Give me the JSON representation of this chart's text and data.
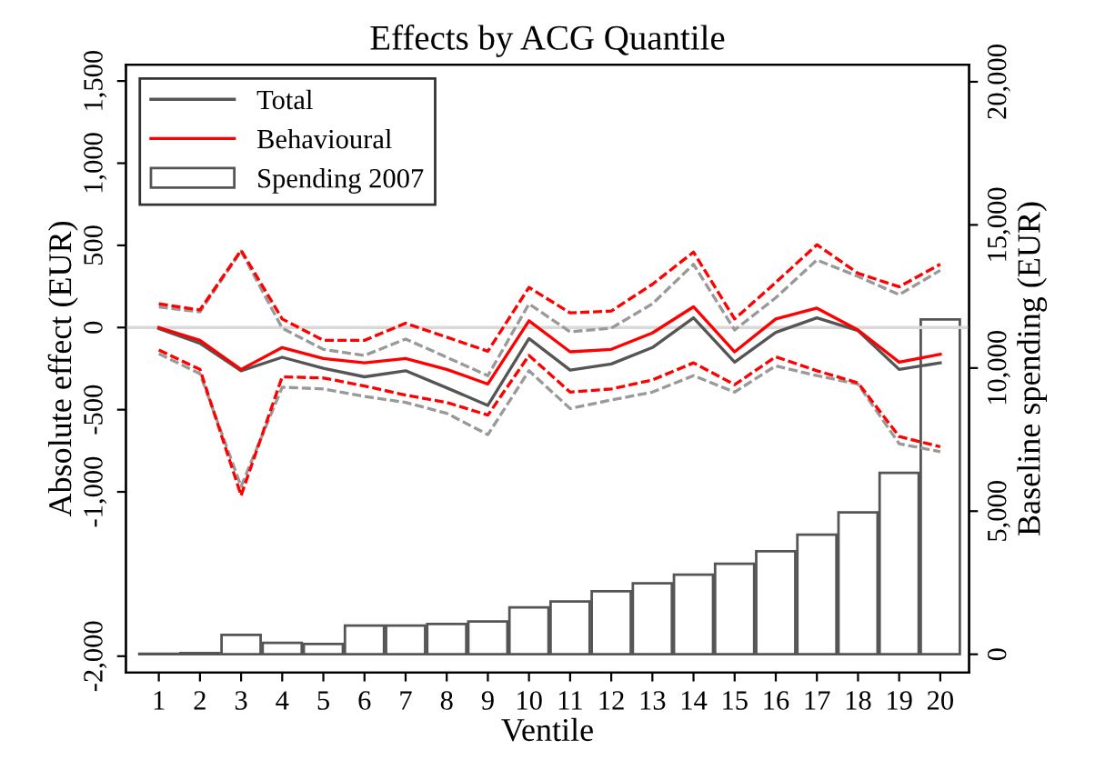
{
  "chart_data": {
    "type": "line",
    "title": "Effects by ACG Quantile",
    "xlabel": "Ventile",
    "ylabel": "Absolute effect (EUR)",
    "y2label": "Baseline spending (EUR)",
    "categories": [
      "1",
      "2",
      "3",
      "4",
      "5",
      "6",
      "7",
      "8",
      "9",
      "10",
      "11",
      "12",
      "13",
      "14",
      "15",
      "16",
      "17",
      "18",
      "19",
      "20"
    ],
    "series": [
      {
        "name": "Spending 2007",
        "type": "bar",
        "axis": "y2",
        "color": "#ffffff",
        "values": [
          20,
          40,
          680,
          400,
          360,
          1000,
          1000,
          1060,
          1145,
          1635,
          1845,
          2200,
          2480,
          2780,
          3160,
          3600,
          4180,
          4960,
          6340,
          11700
        ]
      },
      {
        "color": "#999999",
        "line_style": "dashed",
        "values": [
          125,
          95,
          465,
          -4,
          -133,
          -170,
          -70,
          -181,
          -293,
          144,
          -26,
          -4,
          144,
          385,
          -15,
          181,
          411,
          311,
          200,
          348
        ]
      },
      {
        "color": "#999999",
        "line_style": "dashed",
        "values": [
          -159,
          -281,
          -967,
          -363,
          -374,
          -419,
          -456,
          -522,
          -652,
          -263,
          -493,
          -441,
          -393,
          -293,
          -393,
          -233,
          -293,
          -344,
          -707,
          -756
        ]
      },
      {
        "color": "#ff0000",
        "line_style": "dashed",
        "values": [
          144,
          107,
          470,
          52,
          -78,
          -78,
          26,
          -59,
          -144,
          244,
          89,
          100,
          263,
          459,
          52,
          274,
          504,
          330,
          248,
          385
        ]
      },
      {
        "color": "#ff0000",
        "line_style": "dashed",
        "values": [
          -137,
          -255,
          -1022,
          -300,
          -307,
          -356,
          -411,
          -456,
          -533,
          -170,
          -393,
          -374,
          -319,
          -215,
          -348,
          -178,
          -263,
          -337,
          -663,
          -726
        ]
      },
      {
        "name": "Total",
        "color": "#555555",
        "line_style": "solid",
        "values": [
          -7,
          -96,
          -263,
          -181,
          -248,
          -300,
          -263,
          -367,
          -474,
          -67,
          -259,
          -222,
          -122,
          59,
          -211,
          -30,
          59,
          -19,
          -255,
          -215
        ]
      },
      {
        "name": "Behavioural",
        "color": "#ff0000",
        "line_style": "solid",
        "values": [
          0,
          -78,
          -255,
          -122,
          -189,
          -215,
          -189,
          -255,
          -344,
          41,
          -148,
          -133,
          -33,
          126,
          -148,
          52,
          118,
          -15,
          -211,
          -163
        ]
      }
    ],
    "ylim": [
      -2100,
      1600
    ],
    "yticks": [
      {
        "value": -2000,
        "label": "-2,000"
      },
      {
        "value": -1000,
        "label": "-1,000"
      },
      -500,
      0,
      500,
      {
        "value": 1000,
        "label": "1,000"
      },
      {
        "value": 1500,
        "label": "1,500"
      }
    ],
    "y2lim": [
      -640,
      20600
    ],
    "y2ticks": [
      0,
      {
        "value": 5000,
        "label": "5,000"
      },
      {
        "value": 10000,
        "label": "10,000"
      },
      {
        "value": 15000,
        "label": "15,000"
      },
      {
        "value": 20000,
        "label": "20,000"
      }
    ],
    "ref_lines": [
      {
        "axis": "y",
        "value": 0,
        "color": "#d9d9d9"
      }
    ],
    "legend": "top left",
    "grid": false
  }
}
